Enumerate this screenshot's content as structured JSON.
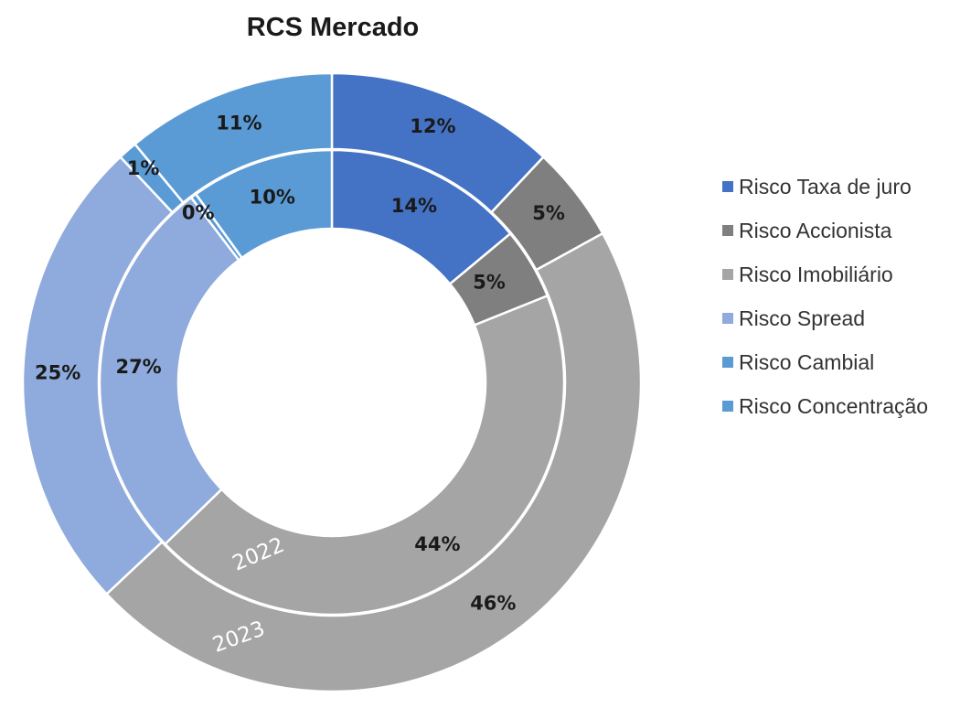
{
  "chart_data": {
    "type": "doughnut",
    "title": "RCS Mercado",
    "categories": [
      "Risco Taxa de juro",
      "Risco Accionista",
      "Risco Imobiliário",
      "Risco Spread",
      "Risco Cambial",
      "Risco Concentração"
    ],
    "colors": [
      "#4472c4",
      "#7f7f7f",
      "#a5a5a5",
      "#8faadc",
      "#5b9bd5",
      "#5b9bd5"
    ],
    "series": [
      {
        "name": "2023",
        "ring": "outer",
        "values": [
          12,
          5,
          46,
          25,
          1,
          11
        ],
        "labels": [
          "12%",
          "5%",
          "46%",
          "25%",
          "1%",
          "11%"
        ]
      },
      {
        "name": "2022",
        "ring": "inner",
        "values": [
          14,
          5,
          44,
          27,
          0.4,
          10
        ],
        "labels": [
          "14%",
          "5%",
          "44%",
          "27%",
          "0%",
          "10%"
        ]
      }
    ],
    "legend_position": "right"
  }
}
